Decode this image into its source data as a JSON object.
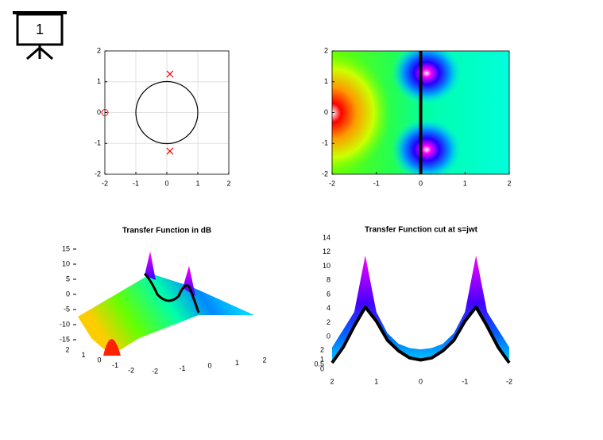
{
  "slide_number": "1",
  "chart_data": [
    {
      "type": "scatter",
      "xlim": [
        -2,
        2
      ],
      "ylim": [
        -2,
        2
      ],
      "xticks": [
        -2,
        -1,
        0,
        1,
        2
      ],
      "yticks": [
        -2,
        -1,
        0,
        1,
        2
      ],
      "grid": true,
      "circle_radius": 1,
      "color": "#ff0000",
      "zeros": {
        "x": [
          -2
        ],
        "y": [
          0
        ]
      },
      "poles": {
        "x": [
          0.1,
          0.1
        ],
        "y": [
          1.25,
          -1.25
        ]
      }
    },
    {
      "type": "heatmap",
      "xlim": [
        -2,
        2
      ],
      "ylim": [
        -2,
        2
      ],
      "xticks": [
        -2,
        -1,
        0,
        1,
        2
      ],
      "yticks": [
        -2,
        -1,
        0,
        1,
        2
      ]
    },
    {
      "type": "surface",
      "title": "Transfer Function in dB",
      "xlim": [
        -2,
        2
      ],
      "ylim": [
        2,
        -2
      ],
      "zlim": [
        -15,
        15
      ],
      "xticks": [
        -2,
        -1,
        0,
        1,
        2
      ],
      "yticks": [
        2,
        1,
        0,
        -1,
        -2
      ],
      "zticks": [
        15,
        10,
        5,
        0,
        -5,
        -10,
        -15
      ]
    },
    {
      "type": "line",
      "title": "Transfer Function cut at s=jwt",
      "xlim": [
        2,
        -2
      ],
      "ylim": [
        -4.6,
        14
      ],
      "xticks": [
        2,
        1,
        0,
        -1,
        -2
      ],
      "yticks": [
        14,
        12,
        10,
        8,
        6,
        4,
        2,
        0
      ],
      "y2lim": [
        0,
        2
      ],
      "y2ticks": [
        2,
        1,
        0.5,
        0
      ],
      "x": [
        2,
        1.75,
        1.5,
        1.25,
        1,
        0.75,
        0.5,
        0.25,
        0,
        -0.25,
        -0.5,
        -0.75,
        -1,
        -1.25,
        -1.5,
        -1.75,
        -2
      ],
      "series": [
        {
          "values": [
            -1.5,
            1,
            3.5,
            11.5,
            3.5,
            0.5,
            -1,
            -1.6,
            -1.8,
            -1.6,
            -1,
            0.5,
            3.5,
            11.5,
            3.5,
            1,
            -1.5
          ]
        },
        {
          "color": "#000000",
          "values": [
            -3.7,
            -1.5,
            1.5,
            4.2,
            2.2,
            -0.5,
            -2,
            -3,
            -3.3,
            -3,
            -2,
            -0.5,
            2.2,
            4.2,
            1.5,
            -1.5,
            -3.7
          ]
        }
      ]
    }
  ]
}
